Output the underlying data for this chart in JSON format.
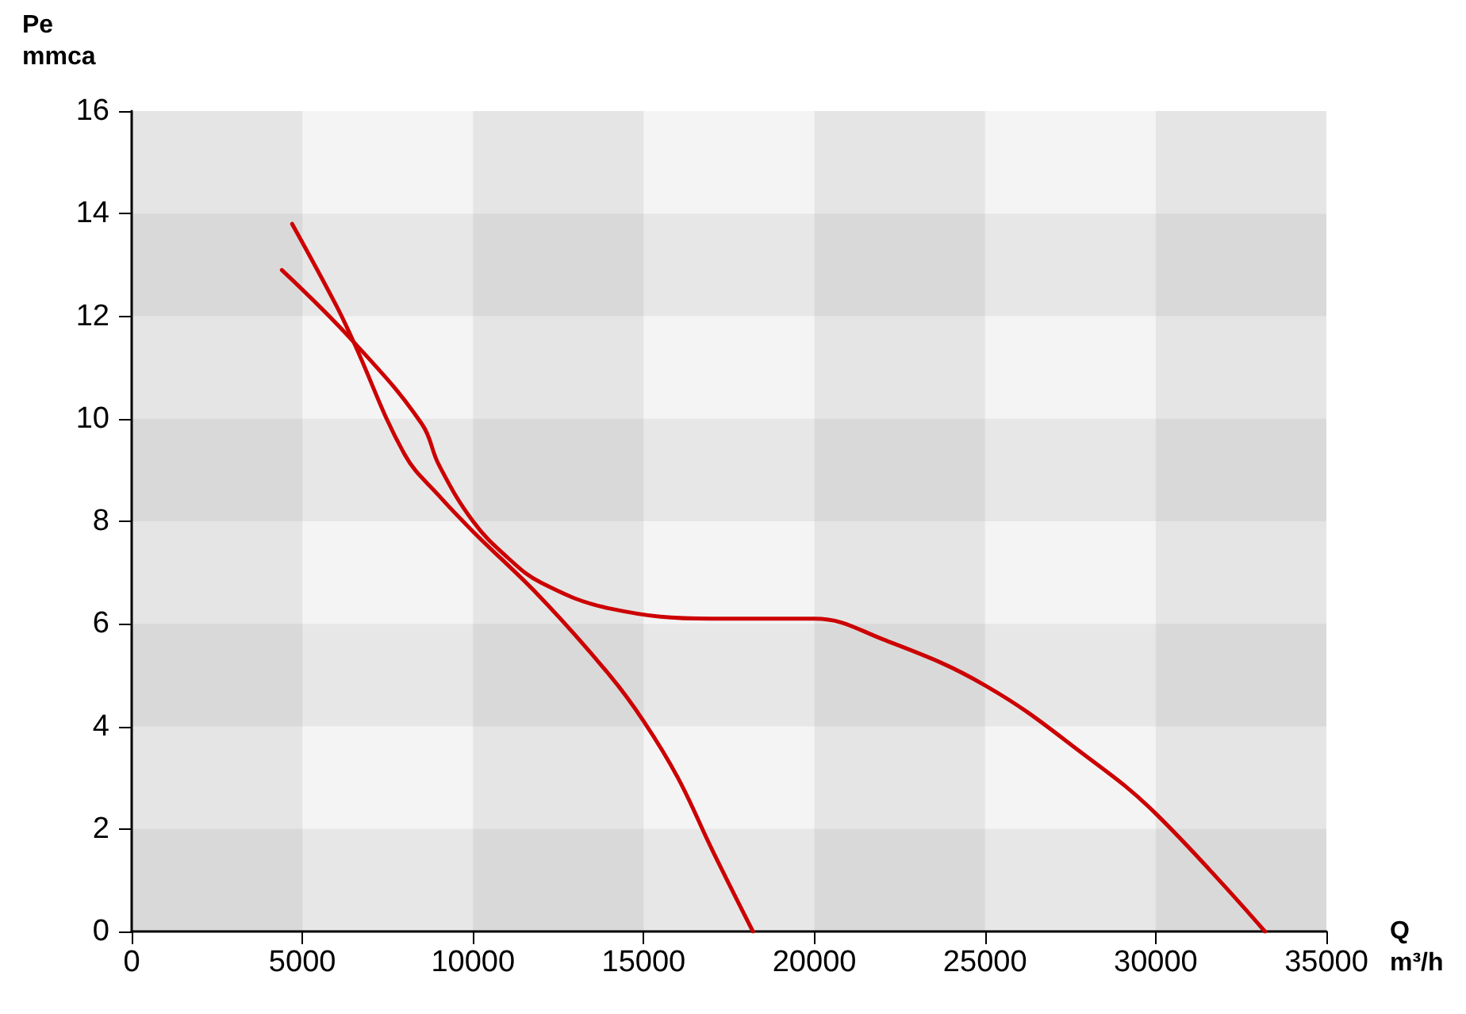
{
  "chart_data": {
    "type": "line",
    "xlabel": "Q\nm³/h",
    "ylabel": "Pe\nmmca",
    "xlim": [
      0,
      35000
    ],
    "xticks": [
      0,
      5000,
      10000,
      15000,
      20000,
      25000,
      30000,
      35000
    ],
    "ylim": [
      0,
      16
    ],
    "yticks": [
      0,
      2,
      4,
      6,
      8,
      10,
      12,
      14,
      16
    ],
    "marker": "none",
    "line_style": "solid",
    "series": [
      {
        "color": "#cc0000",
        "x": [
          4700,
          6000,
          6500,
          8000,
          9000,
          10000,
          12000,
          14000,
          15000,
          16000,
          17000,
          18200
        ],
        "values": [
          13.8,
          12.2,
          11.5,
          9.3,
          8.5,
          7.8,
          6.5,
          5.0,
          4.1,
          3.0,
          1.6,
          0
        ]
      },
      {
        "color": "#cc0000",
        "x": [
          4400,
          6500,
          8500,
          9000,
          10000,
          11000,
          12000,
          14000,
          17000,
          20000,
          22000,
          25000,
          28000,
          30000,
          33200
        ],
        "values": [
          12.9,
          11.5,
          9.9,
          9.1,
          8.0,
          7.3,
          6.8,
          6.3,
          6.1,
          6.1,
          5.7,
          4.8,
          3.4,
          2.3,
          0
        ]
      }
    ]
  }
}
